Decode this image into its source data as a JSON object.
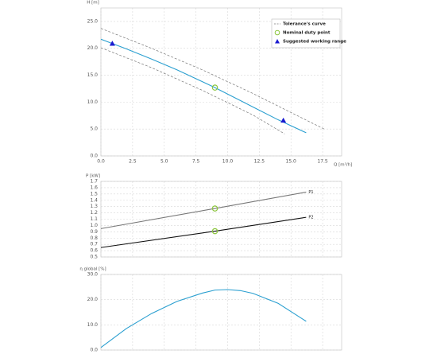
{
  "chart_data": [
    {
      "type": "line",
      "y_label": "H [m]",
      "x_label": "Q [m³/h]",
      "xlim": [
        0,
        19
      ],
      "ylim": [
        0,
        27.5
      ],
      "xticks": [
        {
          "value": 0,
          "label": "0.0"
        },
        2.5,
        {
          "value": 5,
          "label": "5.0"
        },
        7.5,
        {
          "value": 10,
          "label": "10.0"
        },
        12.5,
        {
          "value": 15,
          "label": "15.0"
        },
        17.5
      ],
      "yticks": [
        {
          "value": 0,
          "label": "0.0"
        },
        {
          "value": 5,
          "label": "5.0"
        },
        {
          "value": 10,
          "label": "10.0"
        },
        {
          "value": 15,
          "label": "15.0"
        },
        {
          "value": 20,
          "label": "20.0"
        },
        {
          "value": 25,
          "label": "25.0"
        }
      ],
      "grid": true,
      "legend": "top-right",
      "series": [
        {
          "name": "Tolerance's curve",
          "color": "#777777",
          "dashed": true,
          "x": [
            0,
            4,
            8,
            12,
            17.7
          ],
          "values": [
            23.7,
            20.0,
            16.0,
            11.6,
            4.9
          ]
        },
        {
          "color": "#777777",
          "dashed": true,
          "x": [
            0,
            4,
            8,
            12,
            14.5
          ],
          "values": [
            20.1,
            16.4,
            12.2,
            7.6,
            4.1
          ]
        },
        {
          "color": "#2a9fd0",
          "x": [
            0,
            2,
            4,
            6,
            8,
            9,
            10,
            12,
            14,
            16.2
          ],
          "values": [
            21.7,
            19.9,
            18.0,
            16.0,
            13.8,
            12.7,
            11.5,
            9.1,
            6.7,
            4.3
          ]
        }
      ],
      "markers": [
        {
          "name": "Nominal duty point",
          "shape": "circle",
          "color": "#8dc63f",
          "x": [
            9
          ],
          "values": [
            12.7
          ]
        },
        {
          "name": "Suggested working range",
          "shape": "triangle",
          "color": "#1a1ad0",
          "x": [
            0.9,
            14.4
          ],
          "values": [
            20.9,
            6.6
          ]
        }
      ]
    },
    {
      "type": "line",
      "y_label": "P [kW]",
      "xlim": [
        0,
        19
      ],
      "ylim": [
        0.5,
        1.7
      ],
      "yticks": [
        0.5,
        0.6,
        0.7,
        0.8,
        0.9,
        {
          "value": 1,
          "label": "1.0"
        },
        1.1,
        1.2,
        1.3,
        1.4,
        1.5,
        1.6,
        1.7
      ],
      "grid": true,
      "legend": "line-end",
      "series": [
        {
          "name": "P1",
          "color": "#777777",
          "x": [
            0,
            9,
            16.2
          ],
          "values": [
            0.95,
            1.27,
            1.53
          ]
        },
        {
          "name": "P2",
          "color": "#111111",
          "x": [
            0,
            9,
            16.2
          ],
          "values": [
            0.65,
            0.91,
            1.13
          ]
        }
      ],
      "markers": [
        {
          "shape": "circle",
          "color": "#8dc63f",
          "x": [
            9,
            9
          ],
          "values": [
            1.27,
            0.91
          ]
        }
      ]
    },
    {
      "type": "line",
      "y_label": "η global [%]",
      "xlim": [
        0,
        19
      ],
      "ylim": [
        0,
        30
      ],
      "yticks": [
        {
          "value": 0,
          "label": "0.0"
        },
        {
          "value": 10,
          "label": "10.0"
        },
        {
          "value": 20,
          "label": "20.0"
        },
        {
          "value": 30,
          "label": "30.0"
        }
      ],
      "grid": true,
      "series": [
        {
          "color": "#2a9fd0",
          "x": [
            0,
            2,
            4,
            6,
            8,
            9,
            10,
            11,
            12,
            14,
            16.2
          ],
          "values": [
            1.0,
            8.5,
            14.5,
            19.3,
            22.6,
            23.8,
            24.0,
            23.6,
            22.5,
            18.5,
            11.4
          ]
        }
      ]
    }
  ]
}
